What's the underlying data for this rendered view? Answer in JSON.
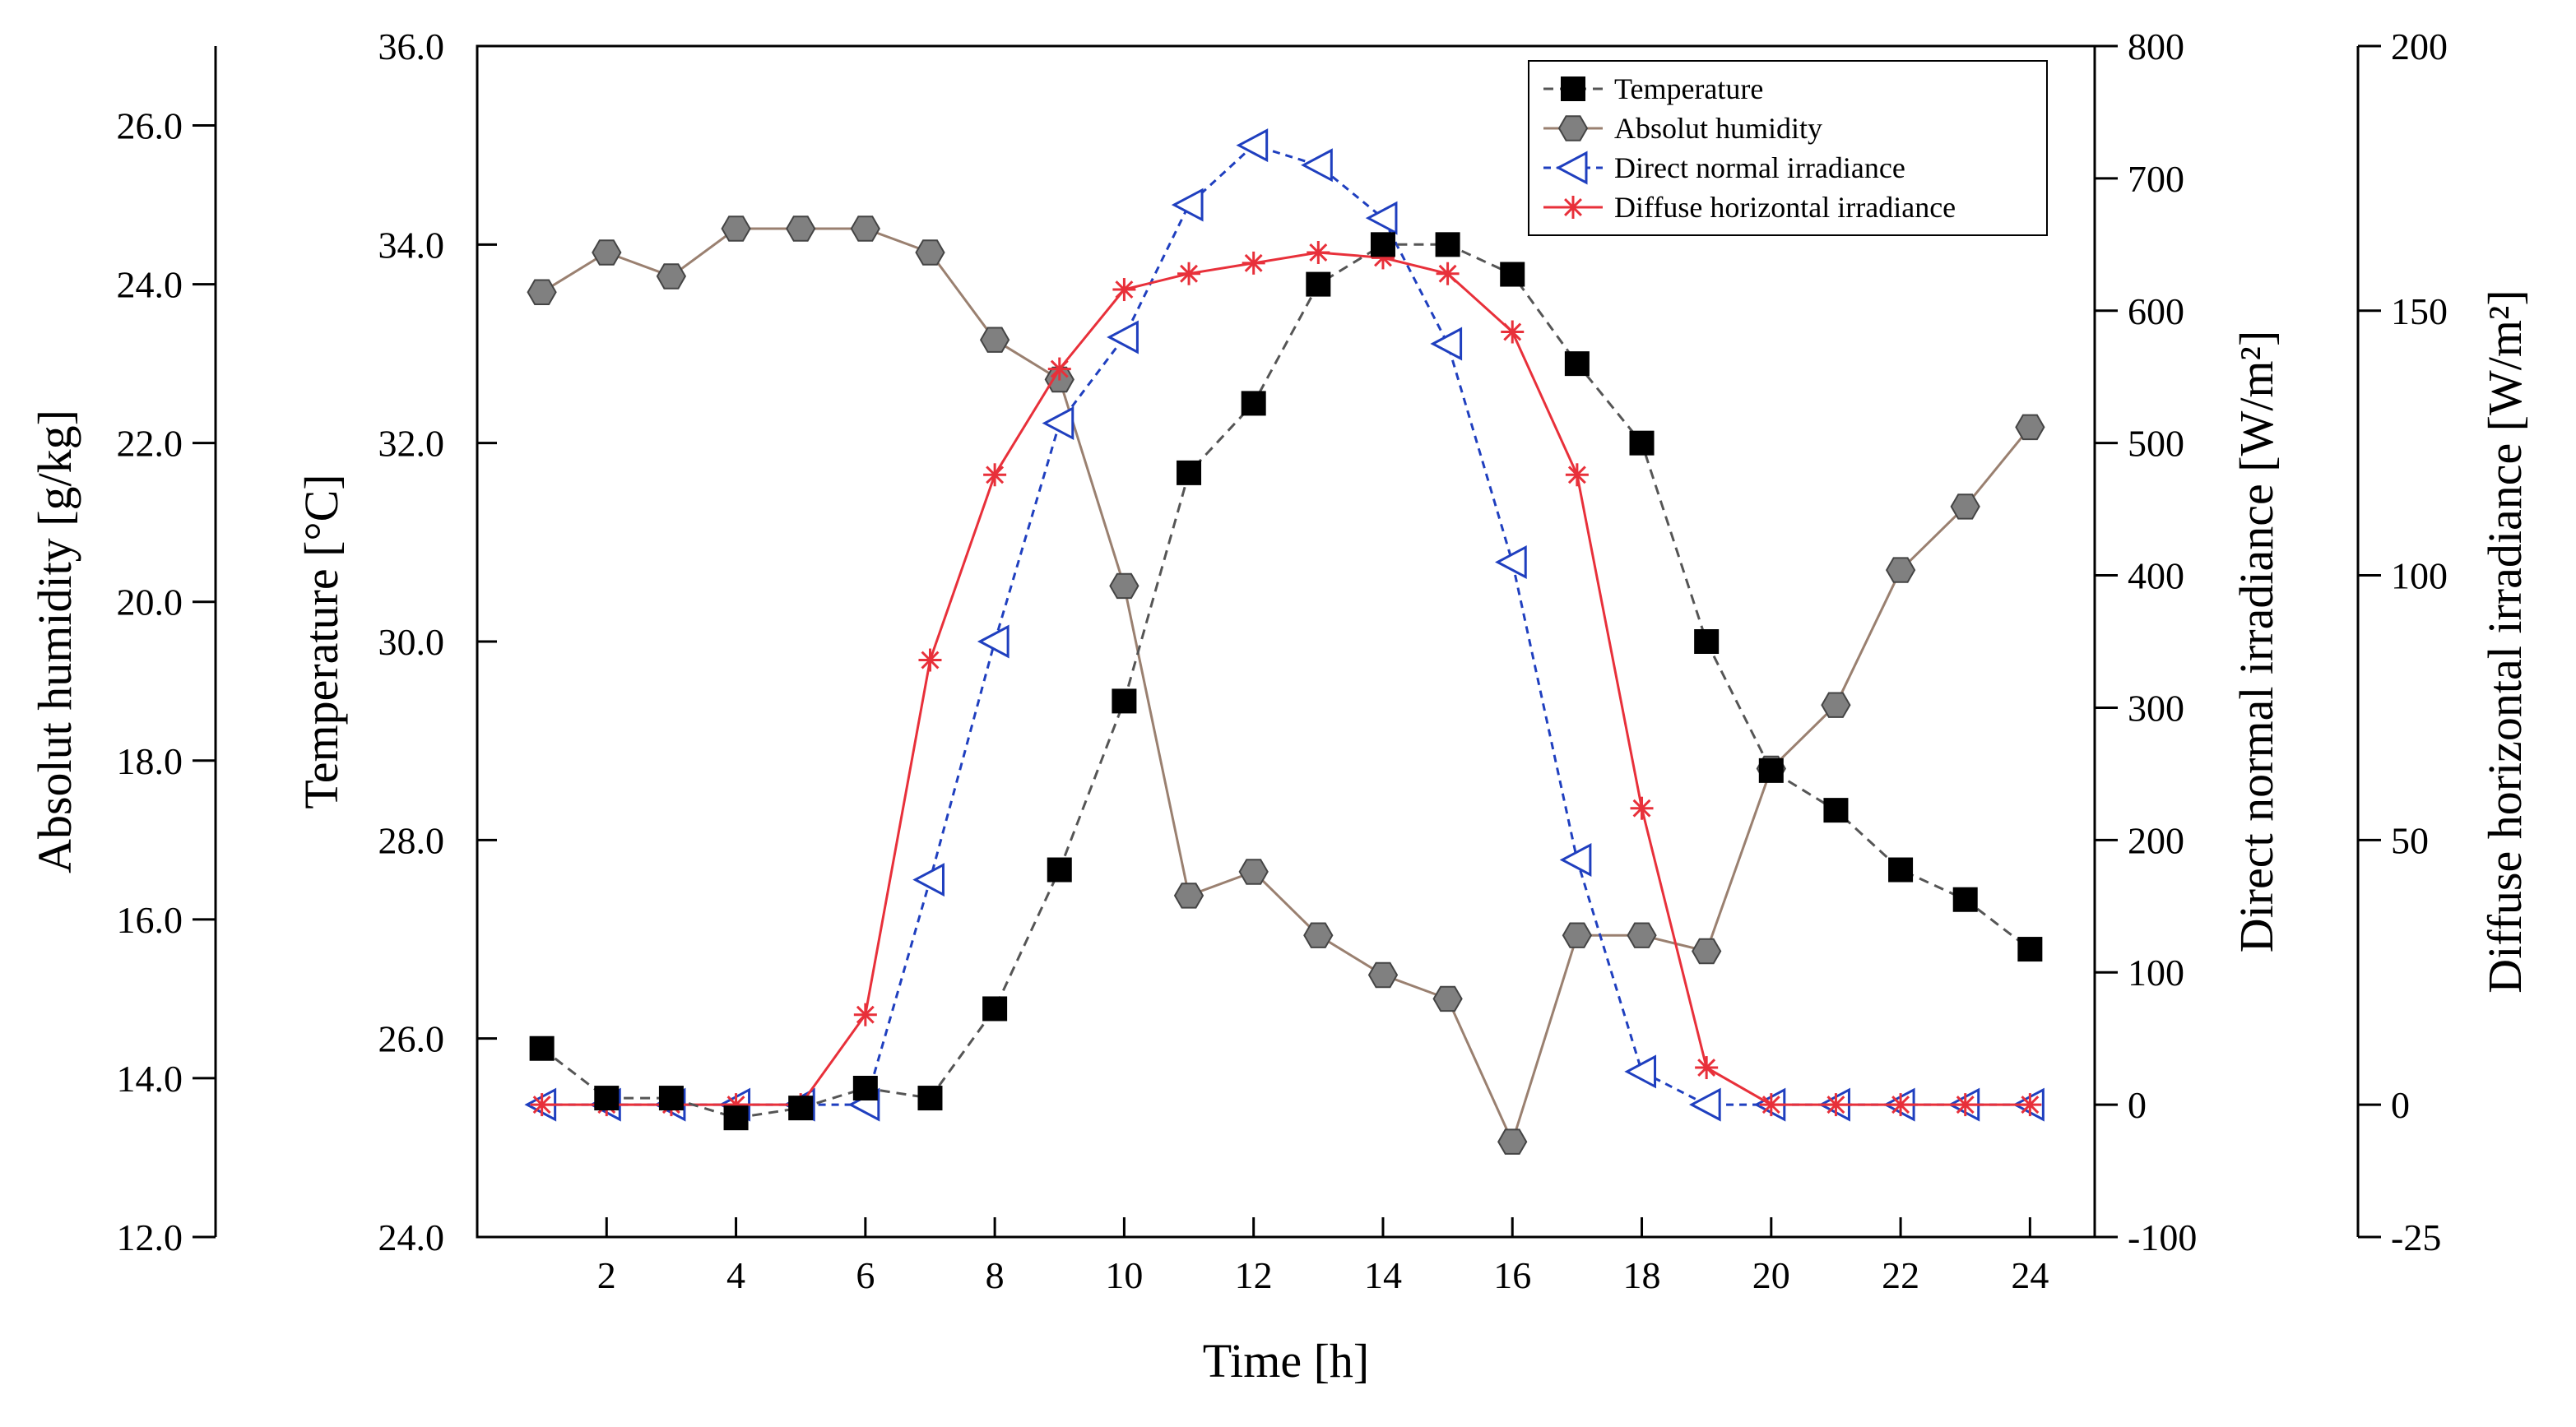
{
  "chart_data": {
    "type": "line",
    "title": "",
    "xlabel": "Time [h]",
    "xlim": [
      0,
      25
    ],
    "xticks": [
      2,
      4,
      6,
      8,
      10,
      12,
      14,
      16,
      18,
      20,
      22,
      24
    ],
    "x": [
      1,
      2,
      3,
      4,
      5,
      6,
      7,
      8,
      9,
      10,
      11,
      12,
      13,
      14,
      15,
      16,
      17,
      18,
      19,
      20,
      21,
      22,
      23,
      24
    ],
    "axes": {
      "humidity": {
        "label": "Absolut humidity [g/kg]",
        "range": [
          12,
          27
        ],
        "ticks": [
          12,
          14,
          16,
          18,
          20,
          22,
          24,
          26
        ],
        "tick_labels": [
          "12.0",
          "14.0",
          "16.0",
          "18.0",
          "20.0",
          "22.0",
          "24.0",
          "26.0"
        ]
      },
      "temperature": {
        "label": "Temperature [°C]",
        "range": [
          24,
          36
        ],
        "ticks": [
          24,
          26,
          28,
          30,
          32,
          34,
          36
        ],
        "tick_labels": [
          "24.0",
          "26.0",
          "28.0",
          "30.0",
          "32.0",
          "34.0",
          "36.0"
        ]
      },
      "dni": {
        "label": "Direct normal irradiance [W/m²]",
        "range": [
          -100,
          800
        ],
        "ticks": [
          -100,
          0,
          100,
          200,
          300,
          400,
          500,
          600,
          700,
          800
        ],
        "tick_labels": [
          "-100",
          "0",
          "100",
          "200",
          "300",
          "400",
          "500",
          "600",
          "700",
          "800"
        ]
      },
      "dhi": {
        "label": "Diffuse horizontal irradiance [W/m²]",
        "range": [
          -25,
          200
        ],
        "ticks": [
          -25,
          0,
          50,
          100,
          150,
          200
        ],
        "tick_labels": [
          "-25",
          "0",
          "50",
          "100",
          "150",
          "200"
        ]
      }
    },
    "series": [
      {
        "name": "Temperature",
        "axis": "temperature",
        "color": "#000000",
        "line_color": "#555555",
        "line_style": "dashed",
        "marker": "square",
        "values": [
          25.9,
          25.4,
          25.4,
          25.2,
          25.3,
          25.5,
          25.4,
          26.3,
          27.7,
          29.4,
          31.7,
          32.4,
          33.6,
          34.0,
          34.0,
          33.7,
          32.8,
          32.0,
          30.0,
          28.7,
          28.3,
          27.7,
          27.4,
          26.9
        ]
      },
      {
        "name": "Absolut humidity",
        "axis": "humidity",
        "color": "#808080",
        "line_color": "#9a8070",
        "line_style": "solid",
        "marker": "hexagon",
        "values": [
          23.9,
          24.4,
          24.1,
          24.7,
          24.7,
          24.7,
          24.4,
          23.3,
          22.8,
          20.2,
          16.3,
          16.6,
          15.8,
          15.3,
          15.0,
          13.2,
          15.8,
          15.8,
          15.6,
          17.9,
          18.7,
          20.4,
          21.2,
          22.2
        ]
      },
      {
        "name": "Direct normal irradiance",
        "axis": "dni",
        "color": "#1f3fbf",
        "line_color": "#1f3fbf",
        "line_style": "dotted",
        "marker": "triangle-left",
        "values": [
          0,
          0,
          0,
          0,
          0,
          0,
          170,
          350,
          515,
          580,
          680,
          725,
          710,
          670,
          575,
          410,
          185,
          25,
          0,
          0,
          0,
          0,
          0,
          0
        ]
      },
      {
        "name": "Diffuse horizontal irradiance",
        "axis": "dhi",
        "color": "#e8303a",
        "line_color": "#e8303a",
        "line_style": "solid",
        "marker": "asterisk",
        "values": [
          0,
          0,
          0,
          0,
          0,
          17,
          84,
          119,
          139,
          154,
          157,
          159,
          161,
          160,
          157,
          146,
          119,
          56,
          7,
          0,
          0,
          0,
          0,
          0
        ]
      }
    ],
    "legend": {
      "position": "top-right",
      "entries": [
        "Temperature",
        "Absolut humidity",
        "Direct normal irradiance",
        "Diffuse horizontal irradiance"
      ]
    }
  }
}
